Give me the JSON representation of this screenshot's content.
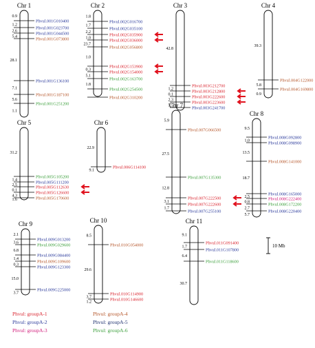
{
  "colors": {
    "A1": "#d9232d",
    "A2": "#2b3a9b",
    "A3": "#d01878",
    "A4": "#b5562a",
    "A5": "#1c2f6e",
    "A6": "#3a9e3a",
    "arrow": "#e0101c"
  },
  "scale_bar": "10 Mb",
  "legend": [
    {
      "label": "Phvul: groupA-1",
      "group": "A1"
    },
    {
      "label": "Phvul: groupA-2",
      "group": "A2"
    },
    {
      "label": "Phvul: groupA-3",
      "group": "A3"
    },
    {
      "label": "Phvul: groupA-4",
      "group": "A4"
    },
    {
      "label": "Phvul: groupA-5",
      "group": "A5"
    },
    {
      "label": "Phvul: groupA-6",
      "group": "A6"
    }
  ],
  "chromosomes": [
    {
      "name": "Chr 1",
      "spacings": [
        "0.9",
        "1.2",
        "2.6",
        "5.4",
        "28.1",
        "7.1",
        "5.6",
        "1.1"
      ],
      "genes": [
        {
          "label": "Phvul.001G010400",
          "group": "A2",
          "arrow": false
        },
        {
          "label": "Phvul.001G023700",
          "group": "A2",
          "arrow": false
        },
        {
          "label": "Phvul.001G044500",
          "group": "A2",
          "arrow": false
        },
        {
          "label": "Phvul.001G073800",
          "group": "A4",
          "arrow": false
        },
        {
          "label": "Phvul.001G136100",
          "group": "A2",
          "arrow": false
        },
        {
          "label": "Phvul.001G187100",
          "group": "A4",
          "arrow": false
        },
        {
          "label": "Phvul.001G251200",
          "group": "A6",
          "arrow": false
        }
      ]
    },
    {
      "name": "Chr 2",
      "spacings": [
        "1.8",
        "1.7",
        "2.2",
        "1.0",
        "23.7",
        "1.0",
        "0.3",
        "5.1",
        "1.8"
      ],
      "genes": [
        {
          "label": "Phvul.002G016700",
          "group": "A2",
          "arrow": false
        },
        {
          "label": "Phvul.002G035100",
          "group": "A2",
          "arrow": false
        },
        {
          "label": "Phvul.002G035900",
          "group": "A1",
          "arrow": true
        },
        {
          "label": "Phvul.002G036000",
          "group": "A1",
          "arrow": true
        },
        {
          "label": "Phvul.002G056800",
          "group": "A4",
          "arrow": false
        },
        {
          "label": "Phvul.002G153900",
          "group": "A1",
          "arrow": true
        },
        {
          "label": "Phvul.002G154000",
          "group": "A1",
          "arrow": true
        },
        {
          "label": "Phvul.002G163700",
          "group": "A6",
          "arrow": false
        },
        {
          "label": "Phvul.002G254500",
          "group": "A6",
          "arrow": false
        },
        {
          "label": "Phvul.002G310200",
          "group": "A4",
          "arrow": false
        }
      ]
    },
    {
      "name": "Chr 3",
      "spacings": [
        "42.8",
        "1.2",
        "0.1",
        "2.3",
        "5.5"
      ],
      "genes": [
        {
          "label": "Phvul.003G212700",
          "group": "A1",
          "arrow": false
        },
        {
          "label": "Phvul.003G212800",
          "group": "A1",
          "arrow": true
        },
        {
          "label": "Phvul.003G222600",
          "group": "A1",
          "arrow": true
        },
        {
          "label": "Phvul.003G223600",
          "group": "A1",
          "arrow": true
        },
        {
          "label": "Phvul.003G241700",
          "group": "A2",
          "arrow": false
        }
      ]
    },
    {
      "name": "Chr 4",
      "spacings": [
        "39.3",
        "5.8",
        "0.9"
      ],
      "genes": [
        {
          "label": "Phvul.004G122000",
          "group": "A4",
          "arrow": false
        },
        {
          "label": "Phvul.004G169800",
          "group": "A4",
          "arrow": false
        }
      ]
    },
    {
      "name": "Chr 5",
      "spacings": [
        "31.2",
        "1.4",
        "2.5",
        "0.1",
        "4.3",
        "1.6"
      ],
      "genes": [
        {
          "label": "Phvul.005G105200",
          "group": "A6",
          "arrow": false
        },
        {
          "label": "Phvul.005G111200",
          "group": "A2",
          "arrow": false
        },
        {
          "label": "Phvul.005G112630",
          "group": "A1",
          "arrow": true
        },
        {
          "label": "Phvul.005G126600",
          "group": "A1",
          "arrow": true
        },
        {
          "label": "Phvul.005G170600",
          "group": "A4",
          "arrow": false
        }
      ]
    },
    {
      "name": "Chr 6",
      "spacings": [
        "22.9",
        "9.1"
      ],
      "genes": [
        {
          "label": "Phvul.006G114100",
          "group": "A1",
          "arrow": false
        }
      ]
    },
    {
      "name": "Chr 7",
      "spacings": [
        "5.9",
        "27.5",
        "12.8",
        "3.1",
        "1.7"
      ],
      "genes": [
        {
          "label": "Phvul.007G066500",
          "group": "A4",
          "arrow": false
        },
        {
          "label": "Phvul.007G135300",
          "group": "A6",
          "arrow": false
        },
        {
          "label": "Phvul.007G222500",
          "group": "A1",
          "arrow": true
        },
        {
          "label": "Phvul.007G222600",
          "group": "A1",
          "arrow": true
        },
        {
          "label": "Phvul.007G255100",
          "group": "A2",
          "arrow": false
        }
      ]
    },
    {
      "name": "Chr 8",
      "spacings": [
        "9.5",
        "1.0",
        "13.5",
        "18.7",
        "2.5",
        "0.8",
        "2.7",
        "5.7"
      ],
      "genes": [
        {
          "label": "Phvul.008G092800",
          "group": "A2",
          "arrow": false
        },
        {
          "label": "Phvul.008G098900",
          "group": "A2",
          "arrow": false
        },
        {
          "label": "Phvul.008G141000",
          "group": "A4",
          "arrow": false
        },
        {
          "label": "Phvul.008G165000",
          "group": "A2",
          "arrow": false
        },
        {
          "label": "Phvul.008G222400",
          "group": "A3",
          "arrow": false
        },
        {
          "label": "Phvul.008G172200",
          "group": "A6",
          "arrow": false
        },
        {
          "label": "Phvul.008G220400",
          "group": "A2",
          "arrow": false
        }
      ]
    },
    {
      "name": "Chr 9",
      "spacings": [
        "2.1",
        "3.6",
        "6.8",
        "1.4",
        "0.3",
        "15.0",
        "3.7"
      ],
      "genes": [
        {
          "label": "Phvul.009G013200",
          "group": "A2",
          "arrow": false
        },
        {
          "label": "Phvul.009G029600",
          "group": "A6",
          "arrow": false
        },
        {
          "label": "Phvul.009G084400",
          "group": "A2",
          "arrow": false
        },
        {
          "label": "Phvul.009G109600",
          "group": "A4",
          "arrow": false
        },
        {
          "label": "Phvul.009G123300",
          "group": "A2",
          "arrow": false
        },
        {
          "label": "Phvul.009G225000",
          "group": "A2",
          "arrow": false
        }
      ]
    },
    {
      "name": "Chr 10",
      "spacings": [
        "8.5",
        "29.6",
        "3.7",
        "1.2"
      ],
      "genes": [
        {
          "label": "Phvul.010G054000",
          "group": "A4",
          "arrow": false
        },
        {
          "label": "Phvul.010G114900",
          "group": "A1",
          "arrow": false
        },
        {
          "label": "Phvul.010G146600",
          "group": "A1",
          "arrow": false
        }
      ]
    },
    {
      "name": "Chr 11",
      "spacings": [
        "9.1",
        "1.7",
        "6.4",
        "30.7"
      ],
      "genes": [
        {
          "label": "Phvul.011G091400",
          "group": "A1",
          "arrow": false
        },
        {
          "label": "Phvul.011G107800",
          "group": "A2",
          "arrow": false
        },
        {
          "label": "Phvul.011G118600",
          "group": "A6",
          "arrow": false
        }
      ]
    }
  ]
}
